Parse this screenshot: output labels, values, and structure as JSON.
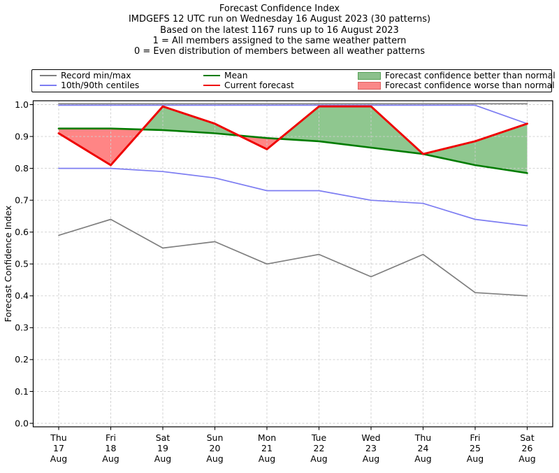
{
  "header": {
    "lines": [
      "Forecast Confidence Index",
      "IMDGEFS 12 UTC run on Wednesday 16 August 2023 (30 patterns)",
      "Based on the latest 1167 runs up to 16 August 2023",
      "1 = All members assigned to the same weather pattern",
      "0 = Even distribution of members between all weather patterns"
    ]
  },
  "legend": {
    "items": [
      {
        "label": "Record min/max",
        "swatch": "line",
        "color": "#7f7f7f",
        "thickness": 2
      },
      {
        "label": "10th/90th centiles",
        "swatch": "line",
        "color": "#7d7df2",
        "thickness": 2
      },
      {
        "label": "Mean",
        "swatch": "line",
        "color": "#007c00",
        "thickness": 2.5
      },
      {
        "label": "Current forecast",
        "swatch": "line",
        "color": "#ee0000",
        "thickness": 2.5
      },
      {
        "label": "Forecast confidence better than normal",
        "swatch": "patch",
        "color": "#8cc08c",
        "border": "#56a056"
      },
      {
        "label": "Forecast confidence worse than normal",
        "swatch": "patch",
        "color": "#fa8888",
        "border": "#e06060"
      }
    ]
  },
  "chart_data": {
    "type": "line",
    "title": "Forecast Confidence Index",
    "xlabel": "",
    "ylabel": "Forecast Confidence Index",
    "ylim": [
      0.0,
      1.0
    ],
    "grid": true,
    "legend_position": "top",
    "x_labels": [
      "Thu 17 Aug",
      "Fri 18 Aug",
      "Sat 19 Aug",
      "Sun 20 Aug",
      "Mon 21 Aug",
      "Tue 22 Aug",
      "Wed 23 Aug",
      "Thu 24 Aug",
      "Fri 25 Aug",
      "Sat 26 Aug"
    ],
    "y_tick_labels": [
      "0.0",
      "0.1",
      "0.2",
      "0.3",
      "0.4",
      "0.5",
      "0.6",
      "0.7",
      "0.8",
      "0.9",
      "1.0"
    ],
    "series": [
      {
        "name": "Record max",
        "values": [
          1.0,
          1.0,
          1.0,
          1.0,
          1.0,
          1.0,
          1.0,
          1.0,
          1.0,
          1.0
        ],
        "color": "#7f7f7f",
        "width": 1.7
      },
      {
        "name": "Record min",
        "values": [
          0.59,
          0.64,
          0.55,
          0.57,
          0.5,
          0.53,
          0.46,
          0.53,
          0.41,
          0.4
        ],
        "color": "#7f7f7f",
        "width": 1.7
      },
      {
        "name": "90th centile",
        "values": [
          1.0,
          1.0,
          1.0,
          1.0,
          1.0,
          1.0,
          1.0,
          1.0,
          1.0,
          0.94
        ],
        "color": "#7d7df2",
        "width": 1.7
      },
      {
        "name": "10th centile",
        "values": [
          0.8,
          0.8,
          0.79,
          0.77,
          0.73,
          0.73,
          0.7,
          0.69,
          0.64,
          0.62
        ],
        "color": "#7d7df2",
        "width": 1.7
      },
      {
        "name": "Mean",
        "values": [
          0.925,
          0.925,
          0.92,
          0.91,
          0.895,
          0.885,
          0.865,
          0.845,
          0.81,
          0.785
        ],
        "color": "#007c00",
        "width": 2.6
      },
      {
        "name": "Current forecast",
        "values": [
          0.91,
          0.81,
          1.0,
          0.94,
          0.86,
          1.0,
          1.0,
          0.845,
          0.885,
          0.94
        ],
        "color": "#ee0000",
        "width": 2.9
      }
    ],
    "fills": {
      "between": [
        "Current forecast",
        "Mean"
      ],
      "better_label": "Forecast confidence better than normal",
      "worse_label": "Forecast confidence worse than normal",
      "better_color": "rgba(0,128,0,0.44)",
      "worse_color": "rgba(255,0,0,0.48)"
    }
  },
  "colors": {
    "gridline": "#cfcfcf",
    "spine": "#000000",
    "record_minmax": "#7f7f7f",
    "centiles": "#7d7df2",
    "mean": "#007c00",
    "current_forecast": "#ee0000"
  }
}
